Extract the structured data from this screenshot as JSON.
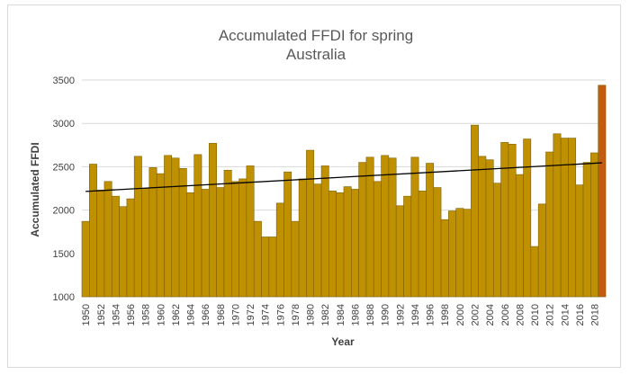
{
  "chart_data": {
    "type": "bar",
    "title": "Accumulated FFDI for spring",
    "subtitle": "Australia",
    "xlabel": "Year",
    "ylabel": "Accumulated FFDI",
    "ylim": [
      1000,
      3500
    ],
    "yticks": [
      1000,
      1500,
      2000,
      2500,
      3000,
      3500
    ],
    "grid": true,
    "legend": "none",
    "colors": {
      "bar": "#BF9000",
      "highlight": "#C55A11",
      "bar_edge": "#7F6000",
      "trend": "#000000",
      "grid": "#d9d9d9"
    },
    "highlight_category": "2019",
    "categories": [
      "1950",
      "1951",
      "1952",
      "1953",
      "1954",
      "1955",
      "1956",
      "1957",
      "1958",
      "1959",
      "1960",
      "1961",
      "1962",
      "1963",
      "1964",
      "1965",
      "1966",
      "1967",
      "1968",
      "1969",
      "1970",
      "1971",
      "1972",
      "1973",
      "1974",
      "1975",
      "1976",
      "1977",
      "1978",
      "1979",
      "1980",
      "1981",
      "1982",
      "1983",
      "1984",
      "1985",
      "1986",
      "1987",
      "1988",
      "1989",
      "1990",
      "1991",
      "1992",
      "1993",
      "1994",
      "1995",
      "1996",
      "1997",
      "1998",
      "1999",
      "2000",
      "2001",
      "2002",
      "2003",
      "2004",
      "2005",
      "2006",
      "2007",
      "2008",
      "2009",
      "2010",
      "2011",
      "2012",
      "2013",
      "2014",
      "2015",
      "2016",
      "2017",
      "2018",
      "2019"
    ],
    "tick_labels": [
      "1950",
      "1952",
      "1954",
      "1956",
      "1958",
      "1960",
      "1962",
      "1964",
      "1966",
      "1968",
      "1970",
      "1972",
      "1974",
      "1976",
      "1978",
      "1980",
      "1982",
      "1984",
      "1986",
      "1988",
      "1990",
      "1992",
      "1994",
      "1996",
      "1998",
      "2000",
      "2002",
      "2004",
      "2006",
      "2008",
      "2010",
      "2012",
      "2014",
      "2016",
      "2018"
    ],
    "values": [
      1870,
      2530,
      2230,
      2330,
      2160,
      2040,
      2130,
      2620,
      2250,
      2490,
      2420,
      2630,
      2600,
      2480,
      2200,
      2640,
      2240,
      2770,
      2260,
      2460,
      2330,
      2360,
      2510,
      1870,
      1690,
      1690,
      2080,
      2440,
      1870,
      2360,
      2690,
      2300,
      2510,
      2220,
      2200,
      2270,
      2240,
      2550,
      2610,
      2330,
      2630,
      2600,
      2050,
      2160,
      2610,
      2220,
      2540,
      2260,
      1890,
      1990,
      2020,
      2010,
      2980,
      2620,
      2580,
      2310,
      2780,
      2760,
      2410,
      2820,
      1580,
      2070,
      2670,
      2880,
      2830,
      2830,
      2290,
      2550,
      2660,
      3440
    ],
    "trendline": {
      "type": "linear",
      "start": 2215,
      "end": 2545
    }
  }
}
